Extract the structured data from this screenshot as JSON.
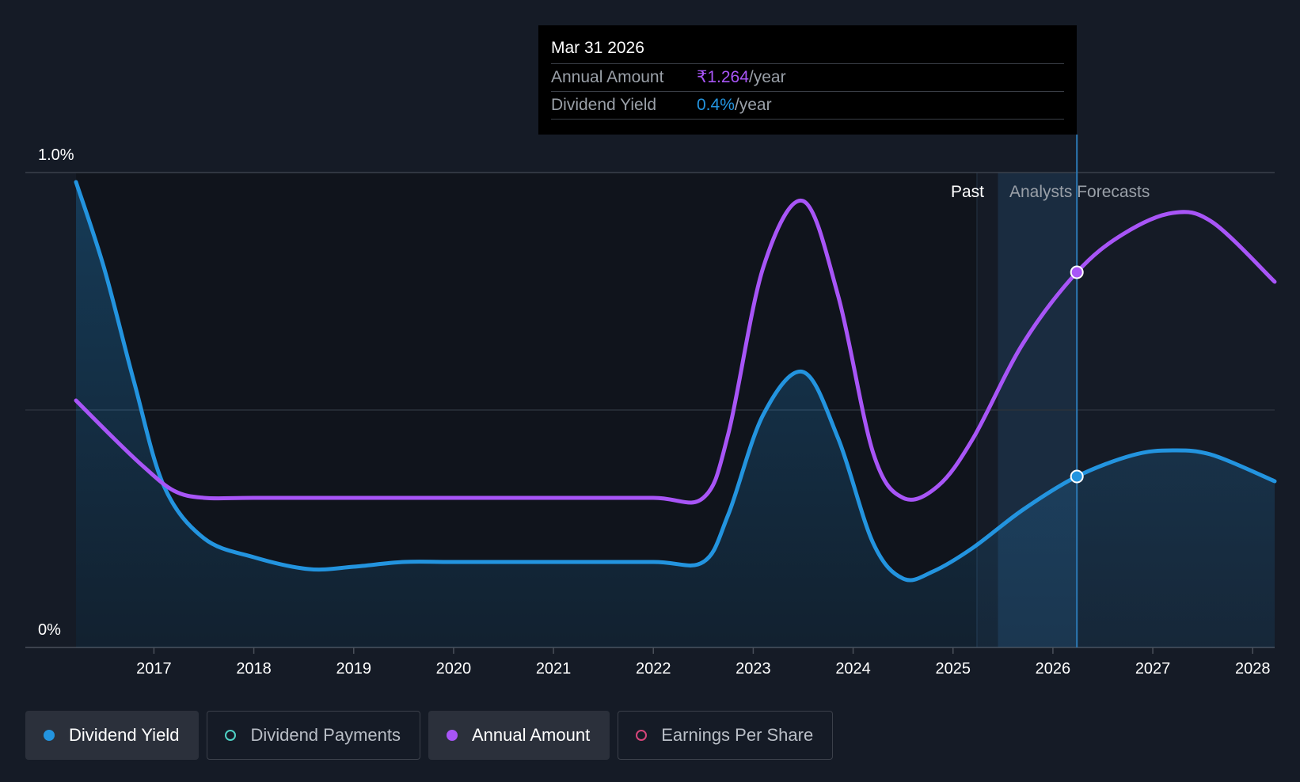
{
  "tooltip": {
    "date": "Mar 31 2026",
    "annual_label": "Annual Amount",
    "annual_value": "₹1.264",
    "annual_unit": "/year",
    "yield_label": "Dividend Yield",
    "yield_value": "0.4%",
    "yield_unit": "/year"
  },
  "regions": {
    "past_label": "Past",
    "forecast_label": "Analysts Forecasts"
  },
  "legend": [
    {
      "label": "Dividend Yield",
      "color": "#2394df",
      "filled": true,
      "active": true
    },
    {
      "label": "Dividend Payments",
      "color": "#4fd1c5",
      "filled": false,
      "active": false
    },
    {
      "label": "Annual Amount",
      "color": "#a855f7",
      "filled": true,
      "active": true
    },
    {
      "label": "Earnings Per Share",
      "color": "#d6457a",
      "filled": false,
      "active": false
    }
  ],
  "chart_data": {
    "type": "line",
    "title": "",
    "xlabel": "",
    "ylabel": "",
    "y_tick_labels": [
      "0%",
      "1.0%"
    ],
    "ylim": [
      0,
      1.0
    ],
    "xlim": [
      2016.22,
      2028.22
    ],
    "x_tick_labels": [
      "2017",
      "2018",
      "2019",
      "2020",
      "2021",
      "2022",
      "2023",
      "2024",
      "2025",
      "2026",
      "2027",
      "2028"
    ],
    "x_ticks": [
      2017,
      2018,
      2019,
      2020,
      2021,
      2022,
      2023,
      2024,
      2025,
      2026,
      2027,
      2028
    ],
    "gridlines": [
      0,
      0.5,
      1.0
    ],
    "past_end": 2025.24,
    "forecast_start": 2025.45,
    "hover_x": 2026.24,
    "series": [
      {
        "name": "Dividend Yield",
        "color": "#2394df",
        "points": [
          [
            2016.22,
            0.98
          ],
          [
            2016.5,
            0.8
          ],
          [
            2016.8,
            0.56
          ],
          [
            2017.1,
            0.34
          ],
          [
            2017.5,
            0.23
          ],
          [
            2018.0,
            0.19
          ],
          [
            2018.55,
            0.165
          ],
          [
            2019.0,
            0.17
          ],
          [
            2019.5,
            0.18
          ],
          [
            2020.0,
            0.18
          ],
          [
            2021.0,
            0.18
          ],
          [
            2022.0,
            0.18
          ],
          [
            2022.5,
            0.18
          ],
          [
            2022.75,
            0.28
          ],
          [
            2023.1,
            0.49
          ],
          [
            2023.5,
            0.58
          ],
          [
            2023.85,
            0.44
          ],
          [
            2024.2,
            0.22
          ],
          [
            2024.5,
            0.145
          ],
          [
            2024.8,
            0.16
          ],
          [
            2025.2,
            0.21
          ],
          [
            2025.7,
            0.29
          ],
          [
            2026.24,
            0.36
          ],
          [
            2026.8,
            0.405
          ],
          [
            2027.2,
            0.415
          ],
          [
            2027.6,
            0.405
          ],
          [
            2028.22,
            0.35
          ]
        ]
      },
      {
        "name": "Annual Amount",
        "color": "#a855f7",
        "points": [
          [
            2016.22,
            0.52
          ],
          [
            2016.6,
            0.44
          ],
          [
            2016.9,
            0.38
          ],
          [
            2017.2,
            0.33
          ],
          [
            2017.5,
            0.315
          ],
          [
            2018.0,
            0.315
          ],
          [
            2019.0,
            0.315
          ],
          [
            2020.0,
            0.315
          ],
          [
            2021.0,
            0.315
          ],
          [
            2022.0,
            0.315
          ],
          [
            2022.5,
            0.315
          ],
          [
            2022.75,
            0.45
          ],
          [
            2023.1,
            0.8
          ],
          [
            2023.5,
            0.94
          ],
          [
            2023.85,
            0.74
          ],
          [
            2024.2,
            0.41
          ],
          [
            2024.5,
            0.315
          ],
          [
            2024.85,
            0.34
          ],
          [
            2025.2,
            0.44
          ],
          [
            2025.7,
            0.64
          ],
          [
            2026.24,
            0.79
          ],
          [
            2026.7,
            0.87
          ],
          [
            2027.2,
            0.915
          ],
          [
            2027.6,
            0.895
          ],
          [
            2028.22,
            0.77
          ]
        ]
      }
    ]
  }
}
